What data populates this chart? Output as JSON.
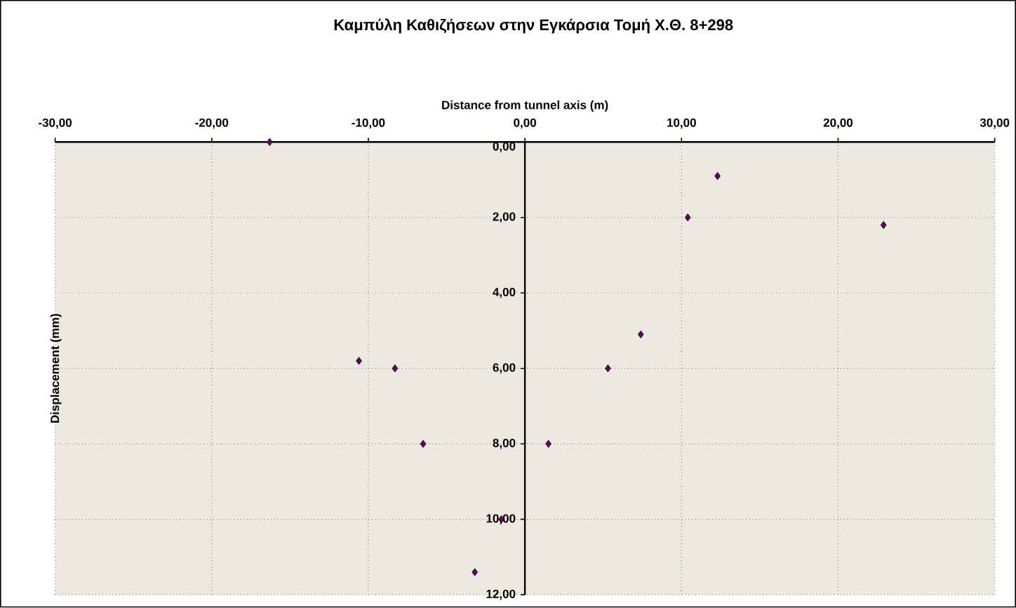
{
  "chart_data": {
    "type": "scatter",
    "title": "Καμπύλη Καθιζήσεων στην Εγκάρσια Τομή Χ.Θ. 8+298",
    "xlabel": "Distance from tunnel axis (m)",
    "ylabel": "Displacement (mm)",
    "x": [
      -16.3,
      -10.6,
      -8.3,
      -6.5,
      -1.5,
      -3.2,
      12.3,
      10.4,
      22.9,
      7.4,
      5.3,
      1.5
    ],
    "series": [
      {
        "color": "#660066",
        "values": [
          0.0,
          5.8,
          6.0,
          8.0,
          10.0,
          11.4,
          0.9,
          2.0,
          2.2,
          5.1,
          6.0,
          8.0
        ]
      }
    ],
    "xlim": [
      -30,
      30
    ],
    "ylim": [
      12,
      0
    ],
    "xticks": [
      {
        "value": -30,
        "label": "-30,00"
      },
      {
        "value": -20,
        "label": "-20,00"
      },
      {
        "value": -10,
        "label": "-10,00"
      },
      {
        "value": 0,
        "label": "0,00"
      },
      {
        "value": 10,
        "label": "10,00"
      },
      {
        "value": 20,
        "label": "20,00"
      },
      {
        "value": 30,
        "label": "30,00"
      }
    ],
    "yticks": [
      {
        "value": 0,
        "label": "0,00"
      },
      {
        "value": 2,
        "label": "2,00"
      },
      {
        "value": 4,
        "label": "4,00"
      },
      {
        "value": 6,
        "label": "6,00"
      },
      {
        "value": 8,
        "label": "8,00"
      },
      {
        "value": 10,
        "label": "10,00"
      },
      {
        "value": 12,
        "label": "12,00"
      }
    ],
    "grid": true,
    "marker": "diamond"
  }
}
